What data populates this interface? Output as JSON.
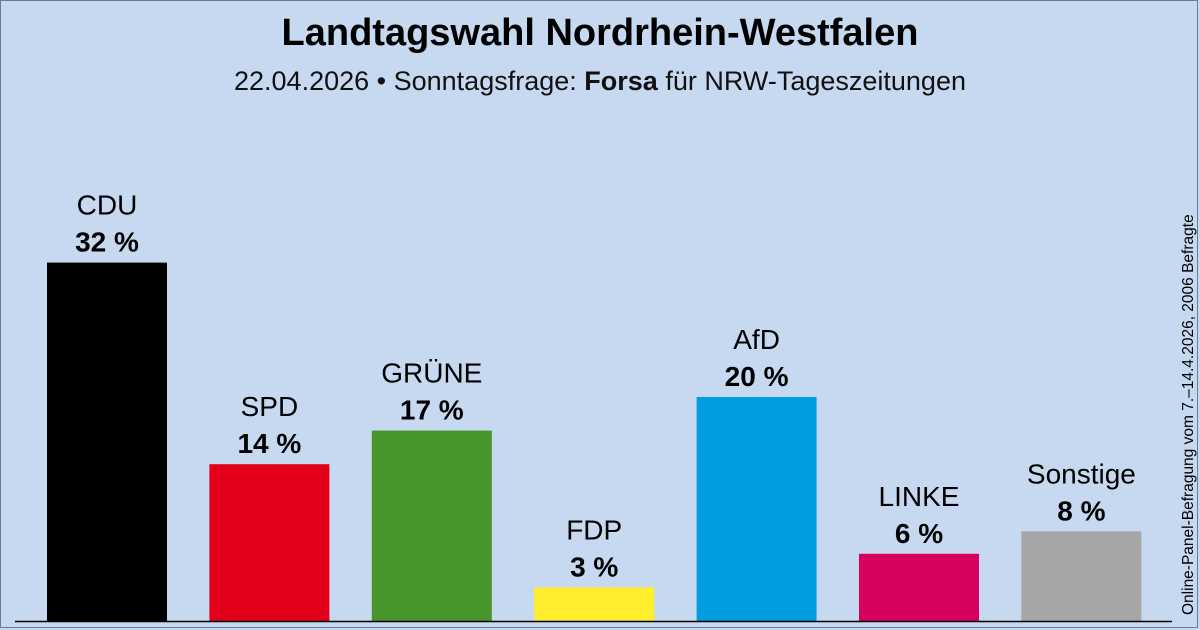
{
  "header": {
    "title": "Landtagswahl Nordrhein-Westfalen",
    "subtitle_date": "22.04.2026",
    "subtitle_separator": "•",
    "subtitle_prefix": "Sonntagsfrage:",
    "subtitle_institute": "Forsa",
    "subtitle_suffix": "für NRW-Tageszeitungen"
  },
  "side_note": "Online-Panel-Befragung vom 7.–14.4.2026, 2006 Befragte",
  "colors": {
    "background": "#c6d9f0",
    "CDU": "#000000",
    "SPD": "#e3001b",
    "GRÜNE": "#46962b",
    "FDP": "#ffed2e",
    "AfD": "#009ee0",
    "LINKE": "#d6005f",
    "Sonstige": "#a6a6a6"
  },
  "chart_data": {
    "type": "bar",
    "categories": [
      "CDU",
      "SPD",
      "GRÜNE",
      "FDP",
      "AfD",
      "LINKE",
      "Sonstige"
    ],
    "values": [
      32,
      14,
      17,
      3,
      20,
      6,
      8
    ],
    "value_labels": [
      "32 %",
      "14 %",
      "17 %",
      "3 %",
      "20 %",
      "6 %",
      "8 %"
    ],
    "unit": "%",
    "grid": false,
    "legend": "none"
  }
}
